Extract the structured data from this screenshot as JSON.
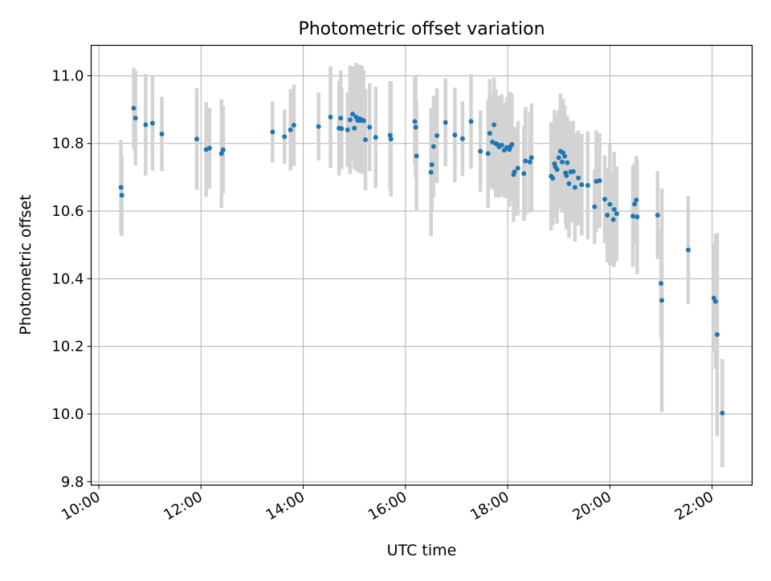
{
  "chart_data": {
    "type": "scatter",
    "title": "Photometric offset variation",
    "xlabel": "UTC time",
    "ylabel": "Photometric offset",
    "x_ticks": [
      "10:00",
      "12:00",
      "14:00",
      "16:00",
      "18:00",
      "20:00",
      "22:00"
    ],
    "y_ticks": [
      "9.8",
      "10.0",
      "10.2",
      "10.4",
      "10.6",
      "10.8",
      "11.0"
    ],
    "xlim": [
      "09:51",
      "22:47"
    ],
    "ylim": [
      9.79,
      11.09
    ],
    "grid": true,
    "colors": {
      "points": "#1f77b4",
      "errorbars": "#d3d3d3",
      "grid": "#b0b0b0"
    },
    "series": [
      {
        "x": [
          "10:26",
          "10:27",
          "10:41",
          "10:43",
          "10:55",
          "11:03",
          "11:14",
          "11:55",
          "12:06",
          "12:10",
          "12:24",
          "12:26",
          "13:24",
          "13:38",
          "13:45",
          "13:49",
          "14:18",
          "14:32",
          "14:42",
          "14:44",
          "14:45",
          "14:52",
          "14:55",
          "14:58",
          "15:00",
          "15:02",
          "15:04",
          "15:06",
          "15:07",
          "15:09",
          "15:11",
          "15:13",
          "15:18",
          "15:25",
          "15:42",
          "15:43",
          "16:11",
          "16:12",
          "16:13",
          "16:30",
          "16:31",
          "16:33",
          "16:37",
          "16:47",
          "16:58",
          "17:07",
          "17:17",
          "17:28",
          "17:37",
          "17:39",
          "17:42",
          "17:44",
          "17:46",
          "17:48",
          "17:50",
          "17:53",
          "17:56",
          "17:59",
          "18:02",
          "18:03",
          "18:05",
          "18:07",
          "18:08",
          "18:12",
          "18:19",
          "18:21",
          "18:26",
          "18:28",
          "18:51",
          "18:53",
          "18:55",
          "18:56",
          "18:58",
          "19:00",
          "19:02",
          "19:04",
          "19:05",
          "19:07",
          "19:08",
          "19:09",
          "19:10",
          "19:12",
          "19:14",
          "19:17",
          "19:19",
          "19:23",
          "19:27",
          "19:34",
          "19:42",
          "19:44",
          "19:48",
          "19:54",
          "19:57",
          "20:00",
          "20:04",
          "20:05",
          "20:08",
          "20:27",
          "20:29",
          "20:31",
          "20:32",
          "20:56",
          "21:00",
          "21:01",
          "21:32",
          "22:02",
          "22:04",
          "22:06",
          "22:12"
        ],
        "y": [
          10.67,
          10.647,
          10.904,
          10.875,
          10.855,
          10.86,
          10.828,
          10.813,
          10.782,
          10.786,
          10.77,
          10.781,
          10.834,
          10.82,
          10.84,
          10.854,
          10.85,
          10.878,
          10.845,
          10.875,
          10.844,
          10.84,
          10.87,
          10.887,
          10.845,
          10.878,
          10.868,
          10.873,
          10.868,
          10.87,
          10.867,
          10.811,
          10.848,
          10.818,
          10.824,
          10.813,
          10.865,
          10.848,
          10.763,
          10.715,
          10.737,
          10.791,
          10.823,
          10.862,
          10.825,
          10.814,
          10.865,
          10.777,
          10.77,
          10.83,
          10.804,
          10.855,
          10.8,
          10.797,
          10.79,
          10.795,
          10.78,
          10.788,
          10.782,
          10.79,
          10.797,
          10.708,
          10.716,
          10.727,
          10.711,
          10.748,
          10.745,
          10.758,
          10.703,
          10.697,
          10.74,
          10.731,
          10.723,
          10.758,
          10.777,
          10.745,
          10.772,
          10.762,
          10.713,
          10.705,
          10.743,
          10.681,
          10.716,
          10.717,
          10.67,
          10.698,
          10.678,
          10.676,
          10.613,
          10.688,
          10.69,
          10.635,
          10.588,
          10.62,
          10.575,
          10.605,
          10.592,
          10.585,
          10.621,
          10.633,
          10.583,
          10.588,
          10.386,
          10.336,
          10.485,
          10.343,
          10.333,
          10.235,
          10.003
        ],
        "error": [
          0.14,
          0.12,
          0.12,
          0.14,
          0.15,
          0.14,
          0.11,
          0.15,
          0.14,
          0.12,
          0.16,
          0.13,
          0.09,
          0.08,
          0.12,
          0.12,
          0.1,
          0.15,
          0.14,
          0.14,
          0.12,
          0.11,
          0.16,
          0.14,
          0.12,
          0.16,
          0.15,
          0.16,
          0.15,
          0.16,
          0.15,
          0.15,
          0.13,
          0.15,
          0.16,
          0.17,
          0.13,
          0.15,
          0.16,
          0.19,
          0.14,
          0.15,
          0.14,
          0.13,
          0.14,
          0.11,
          0.14,
          0.12,
          0.16,
          0.16,
          0.14,
          0.14,
          0.16,
          0.14,
          0.15,
          0.15,
          0.14,
          0.15,
          0.17,
          0.16,
          0.15,
          0.14,
          0.13,
          0.14,
          0.14,
          0.16,
          0.15,
          0.16,
          0.16,
          0.14,
          0.16,
          0.15,
          0.16,
          0.14,
          0.17,
          0.15,
          0.16,
          0.15,
          0.15,
          0.16,
          0.14,
          0.16,
          0.15,
          0.15,
          0.16,
          0.14,
          0.15,
          0.16,
          0.11,
          0.15,
          0.14,
          0.13,
          0.14,
          0.18,
          0.14,
          0.17,
          0.14,
          0.15,
          0.12,
          0.13,
          0.17,
          0.13,
          0.16,
          0.33,
          0.16,
          0.16,
          0.2,
          0.3,
          0.16
        ]
      }
    ]
  }
}
